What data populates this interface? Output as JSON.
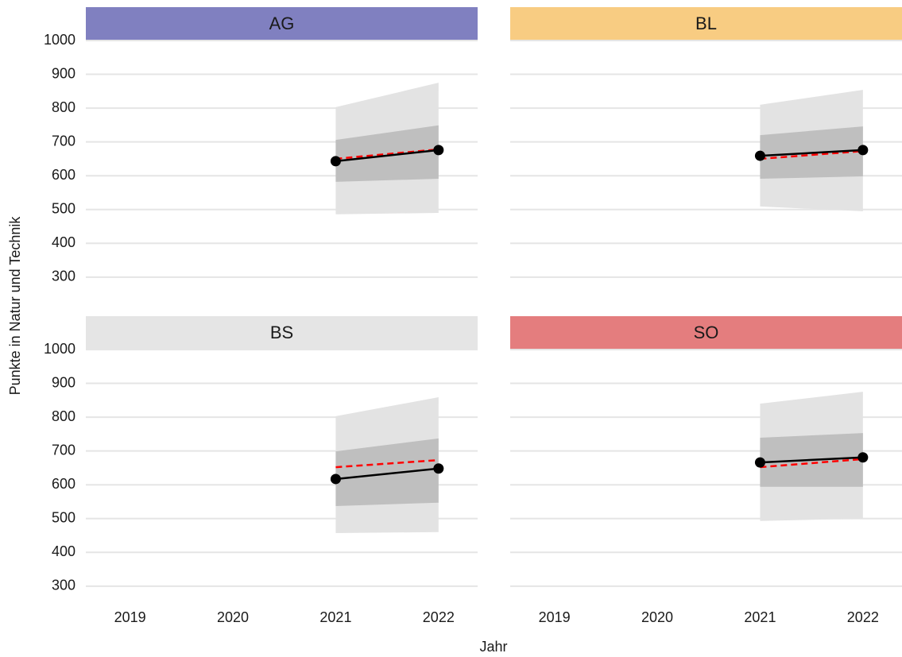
{
  "chart_data": {
    "type": "line",
    "xlabel": "Jahr",
    "ylabel": "Punkte in Natur und Technik",
    "xlim": [
      2018.57,
      2022.38
    ],
    "xticks": [
      2019,
      2020,
      2021,
      2022
    ],
    "ylim": [
      215,
      1000
    ],
    "yticks": [
      300,
      400,
      500,
      600,
      700,
      800,
      900,
      1000
    ],
    "grid": true,
    "panels": [
      {
        "title": "AG",
        "strip_color": "#8080c0",
        "x": [
          2021,
          2022
        ],
        "bands": [
          {
            "color": "#e3e3e3",
            "lower": [
              486,
              490
            ],
            "upper": [
              803,
              875
            ]
          },
          {
            "color": "#bfbfbf",
            "lower": [
              582,
              591
            ],
            "upper": [
              706,
              749
            ]
          }
        ],
        "series": [
          {
            "color": "#ff0000",
            "dashed": true,
            "values": [
              650,
              678
            ]
          },
          {
            "color": "#000000",
            "dashed": false,
            "markers": true,
            "values": [
              643,
              676
            ]
          }
        ]
      },
      {
        "title": "BL",
        "strip_color": "#f8cc82",
        "x": [
          2021,
          2022
        ],
        "bands": [
          {
            "color": "#e3e3e3",
            "lower": [
              509,
              495
            ],
            "upper": [
              810,
              854
            ]
          },
          {
            "color": "#bfbfbf",
            "lower": [
              591,
              598
            ],
            "upper": [
              720,
              746
            ]
          }
        ],
        "series": [
          {
            "color": "#ff0000",
            "dashed": true,
            "values": [
              650,
              673
            ]
          },
          {
            "color": "#000000",
            "dashed": false,
            "markers": true,
            "values": [
              659,
              676
            ]
          }
        ]
      },
      {
        "title": "BS",
        "strip_color": "#e5e5e5",
        "x": [
          2021,
          2022
        ],
        "bands": [
          {
            "color": "#e3e3e3",
            "lower": [
              457,
              460
            ],
            "upper": [
              803,
              859
            ]
          },
          {
            "color": "#bfbfbf",
            "lower": [
              537,
              547
            ],
            "upper": [
              699,
              737
            ]
          }
        ],
        "series": [
          {
            "color": "#ff0000",
            "dashed": true,
            "values": [
              652,
              673
            ]
          },
          {
            "color": "#000000",
            "dashed": false,
            "markers": true,
            "values": [
              617,
              648
            ]
          }
        ]
      },
      {
        "title": "SO",
        "strip_color": "#e47d7e",
        "x": [
          2021,
          2022
        ],
        "bands": [
          {
            "color": "#e3e3e3",
            "lower": [
              493,
              500
            ],
            "upper": [
              840,
              875
            ]
          },
          {
            "color": "#bfbfbf",
            "lower": [
              594,
              594
            ],
            "upper": [
              739,
              753
            ]
          }
        ],
        "series": [
          {
            "color": "#ff0000",
            "dashed": true,
            "values": [
              652,
              676
            ]
          },
          {
            "color": "#000000",
            "dashed": false,
            "markers": true,
            "values": [
              666,
              681
            ]
          }
        ]
      }
    ]
  }
}
